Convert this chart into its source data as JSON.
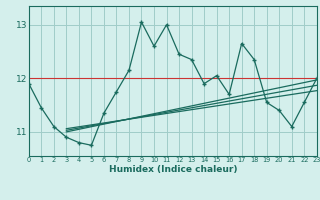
{
  "xlabel": "Humidex (Indice chaleur)",
  "background_color": "#d4efec",
  "grid_color": "#a0ccc8",
  "line_color": "#1a6b5e",
  "red_line_color": "#cc3333",
  "x_data": [
    0,
    1,
    2,
    3,
    4,
    5,
    6,
    7,
    8,
    9,
    10,
    11,
    12,
    13,
    14,
    15,
    16,
    17,
    18,
    19,
    20,
    21,
    22,
    23
  ],
  "y_main": [
    11.9,
    11.45,
    11.1,
    10.9,
    10.8,
    10.75,
    11.35,
    11.75,
    12.15,
    13.05,
    12.6,
    13.0,
    12.45,
    12.35,
    11.9,
    12.05,
    11.7,
    12.65,
    12.35,
    11.55,
    11.4,
    11.1,
    11.55,
    12.0
  ],
  "ylim": [
    10.55,
    13.35
  ],
  "xlim": [
    0,
    23
  ],
  "yticks": [
    11,
    12,
    13
  ],
  "xticks": [
    0,
    1,
    2,
    3,
    4,
    5,
    6,
    7,
    8,
    9,
    10,
    11,
    12,
    13,
    14,
    15,
    16,
    17,
    18,
    19,
    20,
    21,
    22,
    23
  ],
  "red_hline": 12.0,
  "reg_lines": [
    [
      11.05,
      11.0,
      11.97
    ],
    [
      11.05,
      11.03,
      11.87
    ],
    [
      11.05,
      11.06,
      11.77
    ]
  ]
}
